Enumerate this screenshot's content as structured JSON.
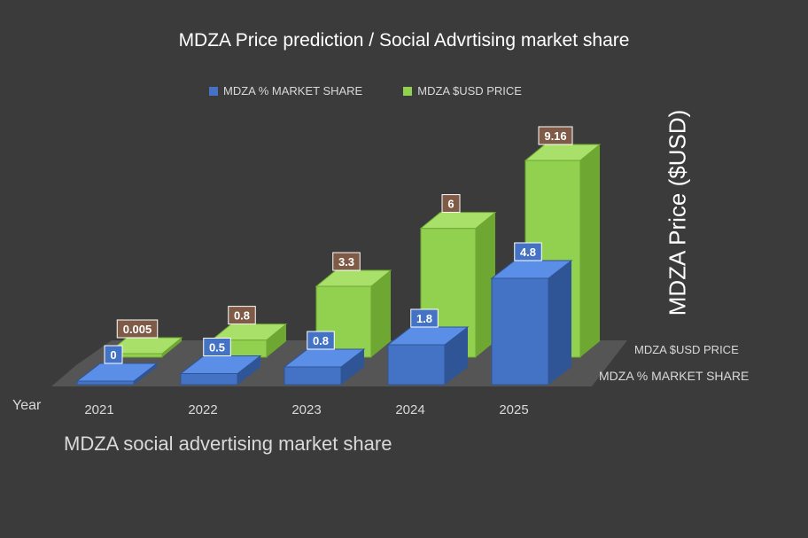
{
  "title": "MDZA Price prediction  / Social Advrtising market share",
  "caption": "MDZA social advertising market share",
  "colors": {
    "background": "#3b3b3b",
    "floor": "#555555",
    "share_front": "#4472c4",
    "share_top": "#5b8ee6",
    "share_side": "#2f5597",
    "price_front": "#92d050",
    "price_top": "#a9e06a",
    "price_side": "#6ea832",
    "share_label_bg": "#4472c4",
    "price_label_bg": "#7f5a46",
    "text": "#ffffff",
    "muted_text": "#d9d9d9"
  },
  "chart_data": {
    "type": "bar",
    "style": "3d-clustered-depth",
    "xlabel": "Year",
    "ylabel": "MDZA Price ($USD)",
    "categories": [
      "2021",
      "2022",
      "2023",
      "2024",
      "2025"
    ],
    "ylim": [
      0,
      9.16
    ],
    "grid": false,
    "legend_position": "top",
    "series": [
      {
        "name": "MDZA % MARKET SHARE",
        "values": [
          0,
          0.5,
          0.8,
          1.8,
          4.8
        ],
        "labels": [
          "0",
          "0.5",
          "0.8",
          "1.8",
          "4.8"
        ]
      },
      {
        "name": "MDZA $USD PRICE",
        "values": [
          0.005,
          0.8,
          3.3,
          6,
          9.16
        ],
        "labels": [
          "0.005",
          "0.8",
          "3.3",
          "6",
          "9.16"
        ]
      }
    ],
    "depth_axis_labels": [
      "MDZA $USD PRICE",
      "MDZA % MARKET SHARE"
    ]
  }
}
